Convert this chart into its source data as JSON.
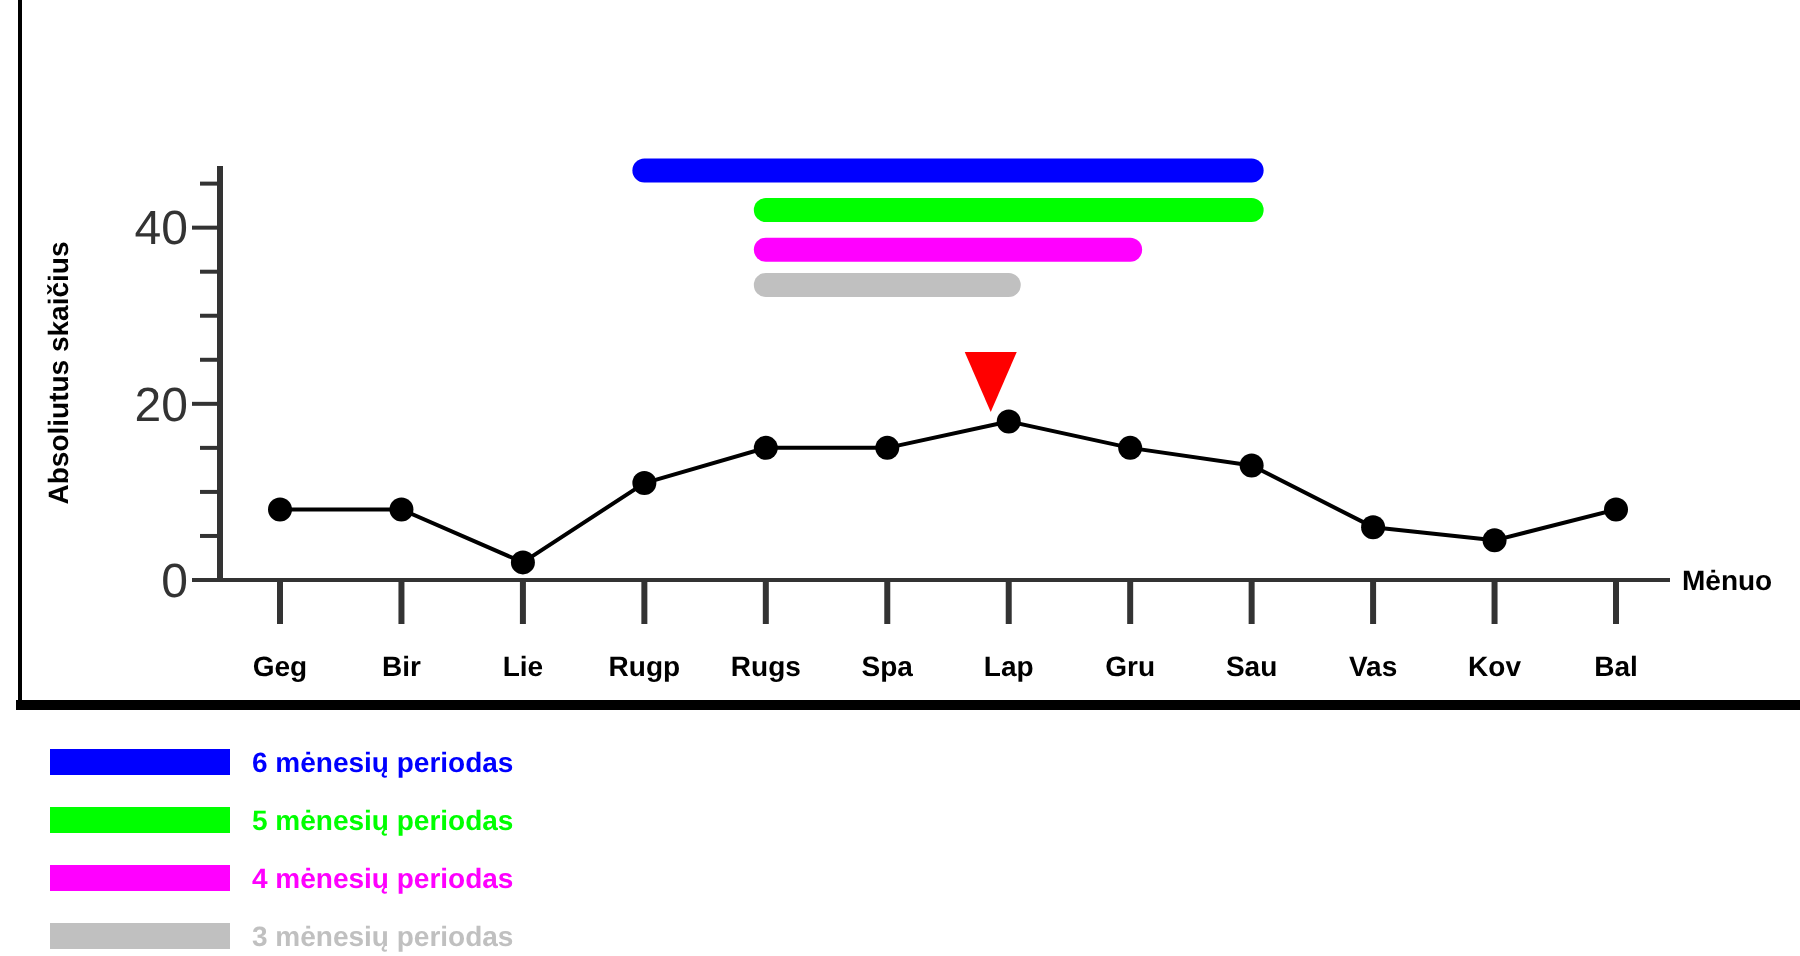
{
  "chart_data": {
    "type": "line",
    "ylabel": "Absoliutus skaičius",
    "xlabel": "Mėnuo",
    "categories": [
      "Geg",
      "Bir",
      "Lie",
      "Rugp",
      "Rugs",
      "Spa",
      "Lap",
      "Gru",
      "Sau",
      "Vas",
      "Kov",
      "Bal"
    ],
    "series": [
      {
        "color": "#000000",
        "values": [
          8,
          8,
          2,
          11,
          15,
          15,
          18,
          15,
          13,
          6,
          4.5,
          8
        ]
      },
      {
        "name": "6 mėnesių periodas",
        "color": "#0000ff",
        "x": [
          "Rugp",
          "Sau"
        ],
        "values": [
          46.5,
          46.5
        ],
        "marker": "none"
      },
      {
        "name": "5 mėnesių periodas",
        "color": "#00ff00",
        "x": [
          "Rugs",
          "Sau"
        ],
        "values": [
          42,
          42
        ],
        "marker": "none"
      },
      {
        "name": "4 mėnesių periodas",
        "color": "#ff00ff",
        "x": [
          "Rugs",
          "Gru"
        ],
        "values": [
          37.5,
          37.5
        ],
        "marker": "none"
      },
      {
        "name": "3 mėnesių periodas",
        "color": "#c0c0c0",
        "x": [
          "Rugs",
          "Lap"
        ],
        "values": [
          33.5,
          33.5
        ],
        "marker": "none"
      }
    ],
    "ylim": [
      0,
      47
    ],
    "yticks": [
      0,
      {
        "value": 5,
        "label": null
      },
      {
        "value": 10,
        "label": null
      },
      {
        "value": 15,
        "label": null
      },
      20,
      {
        "value": 25,
        "label": null
      },
      {
        "value": 30,
        "label": null
      },
      {
        "value": 35,
        "label": null
      },
      40,
      {
        "value": 45,
        "label": null
      }
    ],
    "marker": "circle",
    "line_style": "solid",
    "grid": false,
    "legend": "bottom"
  }
}
